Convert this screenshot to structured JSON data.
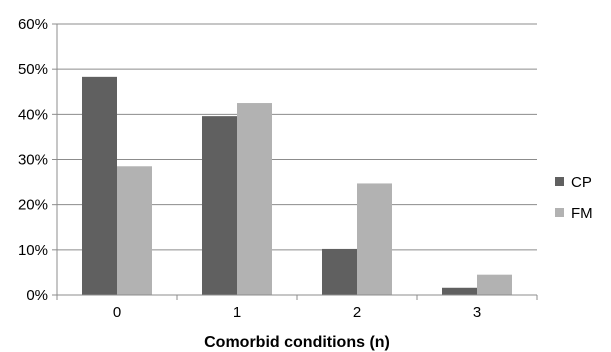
{
  "chart_data": {
    "type": "bar",
    "categories": [
      "0",
      "1",
      "2",
      "3"
    ],
    "series": [
      {
        "name": "CP",
        "values": [
          48.3,
          39.6,
          10.2,
          1.6
        ],
        "color": "#606060"
      },
      {
        "name": "FM",
        "values": [
          28.5,
          42.5,
          24.7,
          4.5
        ],
        "color": "#b2b2b2"
      }
    ],
    "title": "",
    "xlabel": "Comorbid conditions (n)",
    "ylabel": "",
    "ylim": [
      0,
      60
    ],
    "yticks": [
      0,
      10,
      20,
      30,
      40,
      50,
      60
    ],
    "ytick_suffix": "%",
    "grid": true,
    "legend_position": "right"
  }
}
